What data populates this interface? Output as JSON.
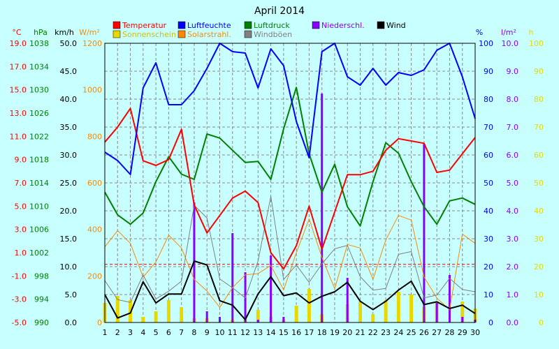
{
  "chart_data": {
    "type": "line",
    "title": "April 2014",
    "days": [
      1,
      2,
      3,
      4,
      5,
      6,
      7,
      8,
      9,
      10,
      11,
      12,
      13,
      14,
      15,
      16,
      17,
      18,
      19,
      20,
      21,
      22,
      23,
      24,
      25,
      26,
      27,
      28,
      29,
      30
    ],
    "legend": [
      {
        "key": "temp",
        "label": "Temperatur",
        "color": "#ff0000"
      },
      {
        "key": "hum",
        "label": "Luftfeuchte",
        "color": "#0000ff"
      },
      {
        "key": "press",
        "label": "Luftdruck",
        "color": "#008000"
      },
      {
        "key": "rain",
        "label": "Niederschl.",
        "color": "#8800ff"
      },
      {
        "key": "wind",
        "label": "Wind",
        "color": "#000000"
      },
      {
        "key": "sun",
        "label": "Sonnenschein",
        "color": "#e8d800"
      },
      {
        "key": "solar",
        "label": "Solarstrahl.",
        "color": "#ff8800"
      },
      {
        "key": "gust",
        "label": "Windböen",
        "color": "#808080"
      }
    ],
    "axes": {
      "temp": {
        "unit": "°C",
        "color": "#ff0000",
        "min": -5,
        "max": 19,
        "ticks": [
          "19.0",
          "17.0",
          "15.0",
          "13.0",
          "11.0",
          "9.0",
          "7.0",
          "5.0",
          "3.0",
          "1.0",
          "-1.0",
          "-3.0",
          "-5.0"
        ]
      },
      "press": {
        "unit": "hPa",
        "color": "#008000",
        "min": 990,
        "max": 1038,
        "ticks": [
          "1038",
          "1034",
          "1030",
          "1026",
          "1022",
          "1018",
          "1014",
          "1010",
          "1006",
          "1002",
          "998",
          "994",
          "990"
        ]
      },
      "wind": {
        "unit": "km/h",
        "color": "#000000",
        "min": 0,
        "max": 50,
        "ticks": [
          "50.0",
          "45.0",
          "40.0",
          "35.0",
          "30.0",
          "25.0",
          "20.0",
          "15.0",
          "10.0",
          "5.0",
          "0.0"
        ]
      },
      "solar": {
        "unit": "W/m²",
        "color": "#ff8800",
        "min": 0,
        "max": 1200,
        "ticks": [
          "1200",
          "1000",
          "800",
          "600",
          "400",
          "200",
          "0"
        ]
      },
      "hum": {
        "unit": "%",
        "color": "#0000ff",
        "min": 0,
        "max": 100,
        "ticks": [
          "100",
          "90",
          "80",
          "70",
          "60",
          "50",
          "40",
          "30",
          "20",
          "10",
          "0"
        ]
      },
      "rain": {
        "unit": "l/m²",
        "color": "#8800ff",
        "min": 0,
        "max": 10,
        "ticks": [
          "10.0",
          "9.0",
          "8.0",
          "7.0",
          "6.0",
          "5.0",
          "4.0",
          "3.0",
          "2.0",
          "1.0",
          "0.0"
        ]
      },
      "sun": {
        "unit": "h",
        "color": "#e8d800",
        "min": 0,
        "max": 100,
        "ticks": [
          "100",
          "90",
          "80",
          "70",
          "60",
          "50",
          "40",
          "30",
          "20",
          "10",
          "0"
        ]
      }
    },
    "series": {
      "temp": [
        10.5,
        11.8,
        13.4,
        8.9,
        8.5,
        9.0,
        11.6,
        5.1,
        2.7,
        4.2,
        5.7,
        6.3,
        5.3,
        1.0,
        -0.4,
        1.6,
        5.0,
        1.3,
        4.5,
        7.7,
        7.7,
        8.0,
        9.8,
        10.8,
        10.6,
        10.4,
        7.9,
        8.1,
        9.5,
        10.9
      ],
      "press": [
        1012.4,
        1008.5,
        1006.9,
        1008.8,
        1014.2,
        1018.5,
        1015.5,
        1014.6,
        1022.4,
        1021.7,
        1019.6,
        1017.5,
        1017.7,
        1014.6,
        1023.3,
        1030.4,
        1019.0,
        1012.4,
        1017.2,
        1009.9,
        1006.6,
        1014.2,
        1020.9,
        1019.1,
        1014.2,
        1009.9,
        1006.9,
        1010.9,
        1011.4,
        1010.3
      ],
      "hum": [
        61,
        58,
        53,
        84,
        93,
        78,
        78,
        83,
        91,
        100,
        97,
        96.5,
        84,
        98,
        92,
        72,
        59,
        97,
        100,
        88,
        85,
        91,
        85,
        89.5,
        88.5,
        90.5,
        97.5,
        100,
        88,
        73
      ],
      "wind": [
        5,
        0.8,
        1.7,
        7.3,
        3.5,
        5.1,
        5.1,
        11,
        10.3,
        3.9,
        3.1,
        0.5,
        5.1,
        8.2,
        4.8,
        5.3,
        3.5,
        4.7,
        5.5,
        7.2,
        3.8,
        2.3,
        3.8,
        5.8,
        7.4,
        3.2,
        3.7,
        2.5,
        3.1,
        1.6
      ],
      "gust": [
        7.5,
        4.1,
        3.6,
        8.5,
        4.2,
        5.6,
        7.4,
        21,
        18.7,
        7.8,
        6.2,
        4.4,
        11,
        22.6,
        7.7,
        10.3,
        7.2,
        10.5,
        13.2,
        13.8,
        8.2,
        5.8,
        6.1,
        12.2,
        12.7,
        4.4,
        4.9,
        7.9,
        5.9,
        5.5
      ],
      "solar": [
        325,
        395,
        340,
        195,
        260,
        375,
        320,
        185,
        135,
        65,
        150,
        205,
        210,
        245,
        140,
        300,
        445,
        280,
        145,
        335,
        320,
        185,
        355,
        460,
        440,
        195,
        105,
        55,
        380,
        340
      ],
      "rain": [
        0,
        0,
        0,
        0,
        0,
        0,
        0,
        4.3,
        0.4,
        0.2,
        3.2,
        1.8,
        0.1,
        2.4,
        0.2,
        0,
        0,
        8.2,
        0,
        1.6,
        0,
        0,
        0,
        0,
        0,
        6.4,
        0.7,
        1.7,
        0.2,
        0.1
      ],
      "sun": [
        7,
        9.5,
        8,
        2,
        4,
        8,
        5.5,
        1.5,
        1.5,
        0,
        1,
        1,
        4.5,
        2,
        1,
        6,
        12,
        3,
        0,
        6.5,
        7.5,
        3,
        8,
        11,
        10,
        5.5,
        7.5,
        0,
        7.5,
        5
      ]
    },
    "grid": true
  }
}
